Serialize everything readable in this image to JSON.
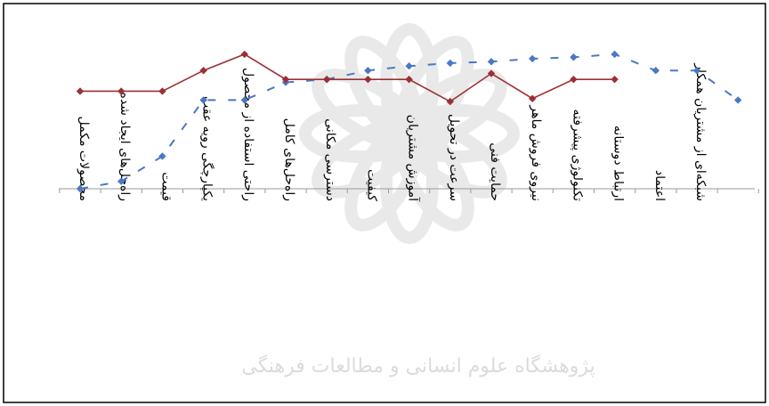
{
  "chart_data": {
    "type": "line",
    "categories": [
      "محصولات مکمل",
      "راه‌حل‌های ایجاد شده",
      "قیمت",
      "یکپارچگی رویه عقب",
      "راحتی استفاده از محصول",
      "راه‌حل‌های کامل",
      "دسترسی مکانی",
      "کیفیت",
      "آموزش مشتریان",
      "سرعت در تحویل",
      "حمایت فنی",
      "نیروی فروش ماهر",
      "تکنولوژی پیشرفته",
      "ارتباط دوستانه",
      "اعتماد",
      "شبکه‌ای از مشتریان همکار",
      ""
    ],
    "series": [
      {
        "style": "dashed",
        "color": "#4a78c4",
        "values": [
          0.0,
          0.5,
          2.2,
          6.0,
          6.0,
          7.2,
          7.4,
          8.0,
          8.3,
          8.5,
          8.6,
          8.8,
          8.9,
          9.1,
          8.0,
          8.0,
          6.0
        ]
      },
      {
        "style": "solid",
        "color": "#9c2f35",
        "values": [
          6.6,
          6.6,
          6.6,
          8.0,
          9.1,
          7.4,
          7.4,
          7.4,
          7.4,
          5.9,
          7.8,
          6.1,
          7.4,
          7.4,
          null,
          null,
          null
        ]
      }
    ],
    "ylim": [
      0,
      10
    ],
    "grid": false,
    "legend": "none"
  },
  "watermark": {
    "text": "پژوهشگاه علوم انسانی و مطالعات فرهنگی"
  }
}
